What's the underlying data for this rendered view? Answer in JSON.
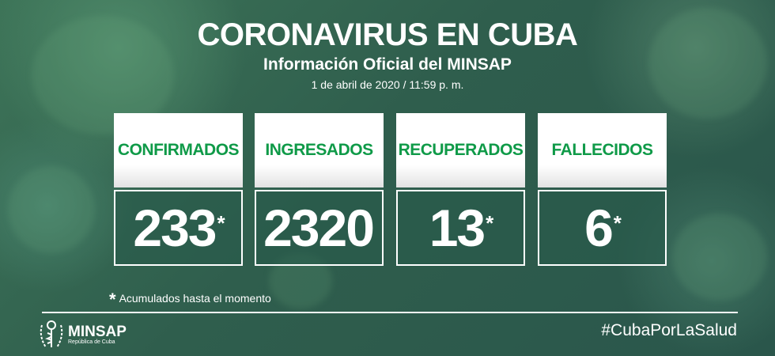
{
  "header": {
    "title": "CORONAVIRUS EN CUBA",
    "subtitle": "Información Oficial del MINSAP",
    "date": "1 de abril de 2020 / 11:59 p. m."
  },
  "stats": [
    {
      "label": "CONFIRMADOS",
      "value": "233",
      "asterisk": "*"
    },
    {
      "label": "INGRESADOS",
      "value": "2320",
      "asterisk": ""
    },
    {
      "label": "RECUPERADOS",
      "value": "13",
      "asterisk": "*"
    },
    {
      "label": "FALLECIDOS",
      "value": "6",
      "asterisk": "*"
    }
  ],
  "footnote": {
    "marker": "*",
    "text": "Acumulados hasta el momento"
  },
  "footer": {
    "logo_name": "MINSAP",
    "logo_sub": "República de Cuba",
    "hashtag": "#CubaPorLaSalud"
  },
  "colors": {
    "label_green": "#0f9a48",
    "background": "#2f5e4d"
  }
}
